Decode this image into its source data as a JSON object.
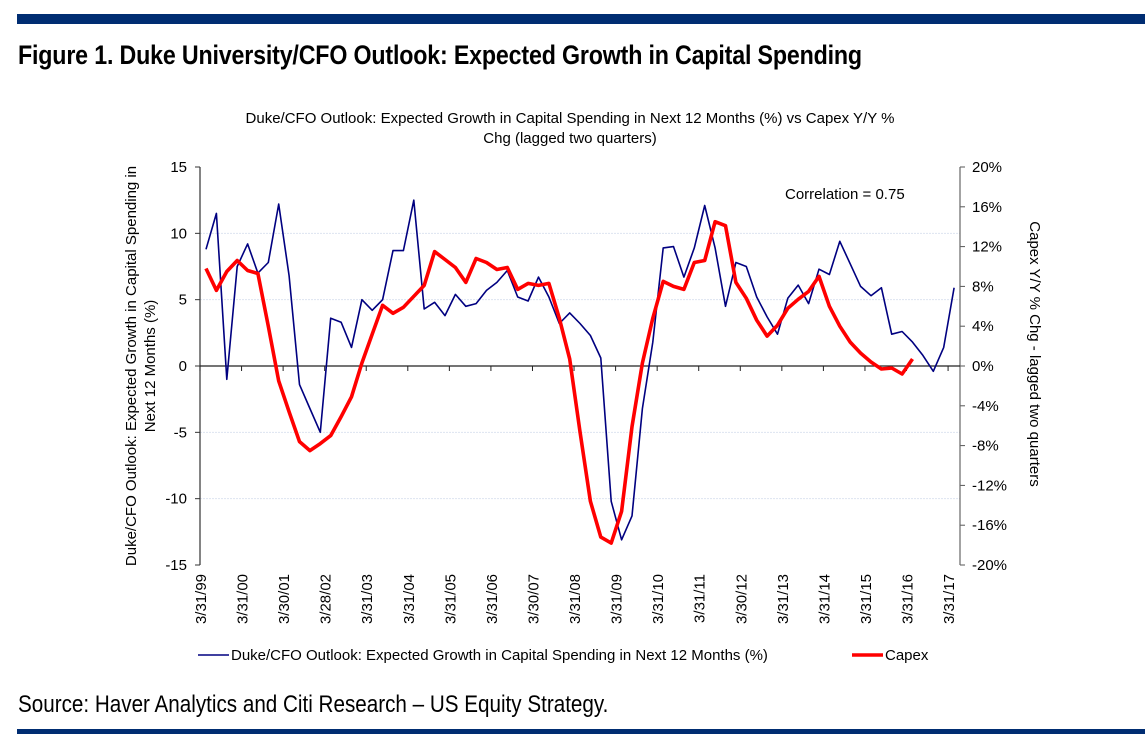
{
  "figure": {
    "title": "Figure 1. Duke University/CFO Outlook: Expected Growth in Capital Spending",
    "source": "Source: Haver Analytics and Citi Research – US Equity Strategy.",
    "brand_color": "#002d72"
  },
  "chart_data": {
    "type": "line",
    "title_line1": "Duke/CFO Outlook: Expected Growth in Capital Spending in Next 12 Months (%) vs Capex Y/Y %",
    "title_line2": "Chg (lagged two quarters)",
    "ylabel_left_line1": "Duke/CFO Outlook: Expected Growth in Capital Spending in",
    "ylabel_left_line2": "Next 12 Months (%)",
    "ylabel_right": "Capex Y/Y % Chg - lagged two quarters",
    "annotation": "Correlation = 0.75",
    "ylim_left": [
      -15,
      15
    ],
    "yticks_left": [
      "15",
      "10",
      "5",
      "0",
      "-5",
      "-10",
      "-15"
    ],
    "ylim_right": [
      -20,
      20
    ],
    "yticks_right": [
      "20%",
      "16%",
      "12%",
      "8%",
      "4%",
      "0%",
      "-4%",
      "-8%",
      "-12%",
      "-16%",
      "-20%"
    ],
    "xtick_labels": [
      "3/31/99",
      "3/31/00",
      "3/30/01",
      "3/28/02",
      "3/31/03",
      "3/31/04",
      "3/31/05",
      "3/31/06",
      "3/30/07",
      "3/31/08",
      "3/31/09",
      "3/31/10",
      "3/31/11",
      "3/30/12",
      "3/31/13",
      "3/31/14",
      "3/31/15",
      "3/31/16",
      "3/31/17"
    ],
    "x_start": "1999Q1",
    "x_frequency": "quarterly",
    "grid": "horizontal",
    "legend_position": "bottom",
    "series": [
      {
        "name": "Duke/CFO Outlook: Expected Growth in Capital Spending in Next 12 Months (%)",
        "axis": "left",
        "color": "#000080",
        "values": [
          8.8,
          11.5,
          -1.0,
          7.5,
          9.2,
          7.0,
          7.8,
          12.2,
          6.8,
          -1.4,
          -3.2,
          -5.0,
          3.6,
          3.3,
          1.4,
          5.0,
          4.2,
          5.0,
          8.7,
          8.7,
          12.5,
          4.3,
          4.8,
          3.8,
          5.4,
          4.5,
          4.7,
          5.7,
          6.3,
          7.2,
          5.2,
          4.9,
          6.7,
          5.2,
          3.2,
          4.0,
          3.2,
          2.3,
          0.6,
          -10.2,
          -13.1,
          -11.3,
          -3.2,
          1.8,
          8.9,
          9.0,
          6.7,
          8.9,
          12.1,
          8.9,
          4.5,
          7.8,
          7.5,
          5.2,
          3.7,
          2.4,
          5.1,
          6.1,
          4.7,
          7.3,
          6.9,
          9.4,
          7.7,
          6.0,
          5.3,
          5.9,
          2.4,
          2.6,
          1.8,
          0.8,
          -0.4,
          1.4,
          5.9
        ]
      },
      {
        "name": "Capex",
        "axis": "right",
        "color": "#ff0000",
        "values": [
          9.8,
          7.6,
          9.5,
          10.6,
          9.6,
          9.3,
          4.0,
          -1.5,
          -4.6,
          -7.6,
          -8.5,
          -7.8,
          -7.0,
          -5.1,
          -3.1,
          0.3,
          3.2,
          6.1,
          5.3,
          5.9,
          7.0,
          8.1,
          11.5,
          10.7,
          9.9,
          8.4,
          10.8,
          10.4,
          9.7,
          9.9,
          7.7,
          8.3,
          8.1,
          8.3,
          4.8,
          0.7,
          -6.6,
          -13.6,
          -17.2,
          -17.8,
          -14.6,
          -6.1,
          0.3,
          4.8,
          8.5,
          8.0,
          7.7,
          10.4,
          10.6,
          14.5,
          14.1,
          8.4,
          6.8,
          4.6,
          3.0,
          4.1,
          5.8,
          6.7,
          7.5,
          9.0,
          6.0,
          4.0,
          2.4,
          1.3,
          0.4,
          -0.3,
          -0.2,
          -0.8,
          0.7
        ]
      }
    ]
  }
}
